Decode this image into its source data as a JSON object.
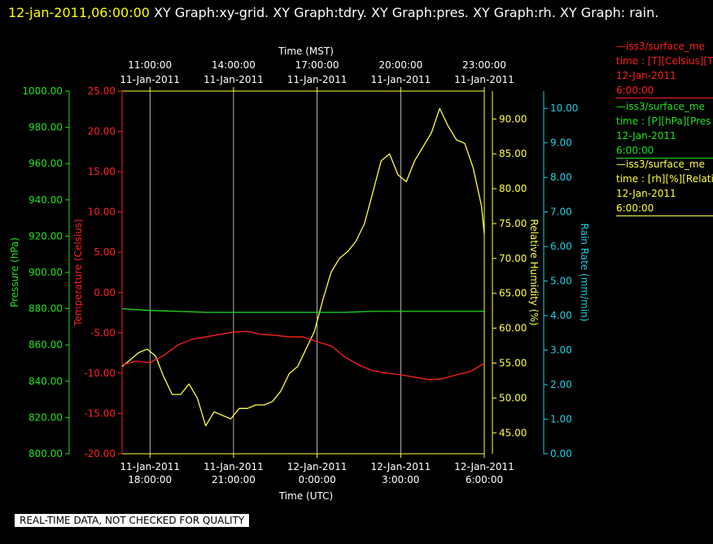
{
  "header": {
    "date": "12-jan-2011,06:00:00",
    "text": "XY Graph:xy-grid.  XY Graph:tdry.  XY Graph:pres.  XY Graph:rh.  XY Graph: rain."
  },
  "notice": "REAL-TIME DATA, NOT CHECKED FOR QUALITY",
  "legend": [
    {
      "line1": "—iss3/surface_me",
      "line2": "time : [T][Celsius][T",
      "line3": "12-Jan-2011",
      "line4": "6:00:00",
      "color": "#ff2020"
    },
    {
      "line1": "—iss3/surface_me",
      "line2": "time : [P][hPa][Pres",
      "line3": "12-Jan-2011",
      "line4": "6:00:00",
      "color": "#20e020"
    },
    {
      "line1": "—iss3/surface_me",
      "line2": "time : [rh][%][Relati",
      "line3": "12-Jan-2011",
      "line4": "6:00:00",
      "color": "#ffff40"
    }
  ],
  "chart_data": {
    "type": "line",
    "x_label_bottom": "Time (UTC)",
    "x_label_top": "Time (MST)",
    "x_range_utc_hours": [
      17,
      30
    ],
    "x_ticks_bottom": [
      {
        "hour": 18,
        "date": "11-Jan-2011",
        "time": "18:00:00"
      },
      {
        "hour": 21,
        "date": "11-Jan-2011",
        "time": "21:00:00"
      },
      {
        "hour": 24,
        "date": "12-Jan-2011",
        "time": "0:00:00"
      },
      {
        "hour": 27,
        "date": "12-Jan-2011",
        "time": "3:00:00"
      },
      {
        "hour": 30,
        "date": "12-Jan-2011",
        "time": "6:00:00"
      }
    ],
    "x_ticks_top": [
      {
        "hour": 18,
        "time": "11:00:00",
        "date": "11-Jan-2011"
      },
      {
        "hour": 21,
        "time": "14:00:00",
        "date": "11-Jan-2011"
      },
      {
        "hour": 24,
        "time": "17:00:00",
        "date": "11-Jan-2011"
      },
      {
        "hour": 27,
        "time": "20:00:00",
        "date": "11-Jan-2011"
      },
      {
        "hour": 30,
        "time": "23:00:00",
        "date": "11-Jan-2011"
      }
    ],
    "axes": {
      "pressure": {
        "label": "Pressure (hPa)",
        "range": [
          800,
          1000
        ],
        "ticks": [
          "800.00",
          "820.00",
          "840.00",
          "860.00",
          "880.00",
          "900.00",
          "920.00",
          "940.00",
          "960.00",
          "980.00",
          "1000.00"
        ],
        "color": "#20e020"
      },
      "temperature": {
        "label": "Temperature (Celsius)",
        "range": [
          -20,
          25
        ],
        "ticks": [
          "-20.00",
          "-15.00",
          "-10.00",
          "-5.00",
          "0.00",
          "5.00",
          "10.00",
          "15.00",
          "20.00",
          "25.00"
        ],
        "color": "#ff2020"
      },
      "humidity": {
        "label": "Relative Humidity (%)",
        "range": [
          42,
          94
        ],
        "ticks": [
          "45.00",
          "50.00",
          "55.00",
          "60.00",
          "65.00",
          "70.00",
          "75.00",
          "80.00",
          "85.00",
          "90.00"
        ],
        "color": "#ffff40"
      },
      "rain": {
        "label": "Rain Rate (mm/min)",
        "range": [
          0,
          10.5
        ],
        "ticks": [
          "0.00",
          "1.00",
          "2.00",
          "3.00",
          "4.00",
          "5.00",
          "6.00",
          "7.00",
          "8.00",
          "9.00",
          "10.00"
        ],
        "color": "#20d0e0"
      }
    },
    "grid": "vertical",
    "series": [
      {
        "axis": "humidity",
        "color": "#ffff40",
        "x": [
          17,
          17.3,
          17.6,
          17.9,
          18.2,
          18.5,
          18.8,
          19.1,
          19.4,
          19.7,
          20,
          20.3,
          20.6,
          20.9,
          21.2,
          21.5,
          21.8,
          22.1,
          22.4,
          22.7,
          23,
          23.3,
          23.6,
          23.9,
          24.2,
          24.5,
          24.8,
          25.1,
          25.4,
          25.7,
          26,
          26.3,
          26.6,
          26.9,
          27.2,
          27.5,
          27.8,
          28.1,
          28.4,
          28.7,
          29,
          29.3,
          29.6,
          29.9,
          30
        ],
        "values": [
          54.5,
          55.5,
          56.5,
          57,
          56,
          53,
          50.5,
          50.5,
          52,
          50,
          46,
          48,
          47.5,
          47,
          48.5,
          48.5,
          49,
          49,
          49.5,
          51,
          53.5,
          54.5,
          57,
          59.5,
          64,
          68,
          70,
          71,
          72.5,
          75,
          79.5,
          84,
          85,
          82,
          81,
          84,
          86,
          88,
          91.5,
          89,
          87,
          86.5,
          83,
          77.5,
          73.5
        ]
      },
      {
        "axis": "temperature",
        "color": "#ff2020",
        "x": [
          17,
          17.5,
          18,
          18.5,
          19,
          19.5,
          20,
          20.5,
          21,
          21.5,
          22,
          22.5,
          23,
          23.5,
          24,
          24.5,
          25,
          25.5,
          26,
          26.5,
          27,
          27.5,
          28,
          28.5,
          29,
          29.5,
          30
        ],
        "values": [
          -9,
          -8.5,
          -8.7,
          -7.8,
          -6.5,
          -5.8,
          -5.5,
          -5.2,
          -4.9,
          -4.8,
          -5.2,
          -5.3,
          -5.5,
          -5.5,
          -6.1,
          -6.6,
          -8.0,
          -9.0,
          -9.7,
          -10.0,
          -10.2,
          -10.5,
          -10.8,
          -10.7,
          -10.2,
          -9.8,
          -8.8
        ]
      },
      {
        "axis": "pressure",
        "color": "#20e020",
        "x": [
          17,
          18,
          19,
          20,
          21,
          22,
          23,
          24,
          25,
          26,
          27,
          28,
          29,
          30
        ],
        "values": [
          880,
          879,
          878.5,
          878,
          878,
          878,
          878,
          878,
          878,
          878.5,
          878.5,
          878.5,
          878.5,
          878.5
        ]
      }
    ]
  }
}
